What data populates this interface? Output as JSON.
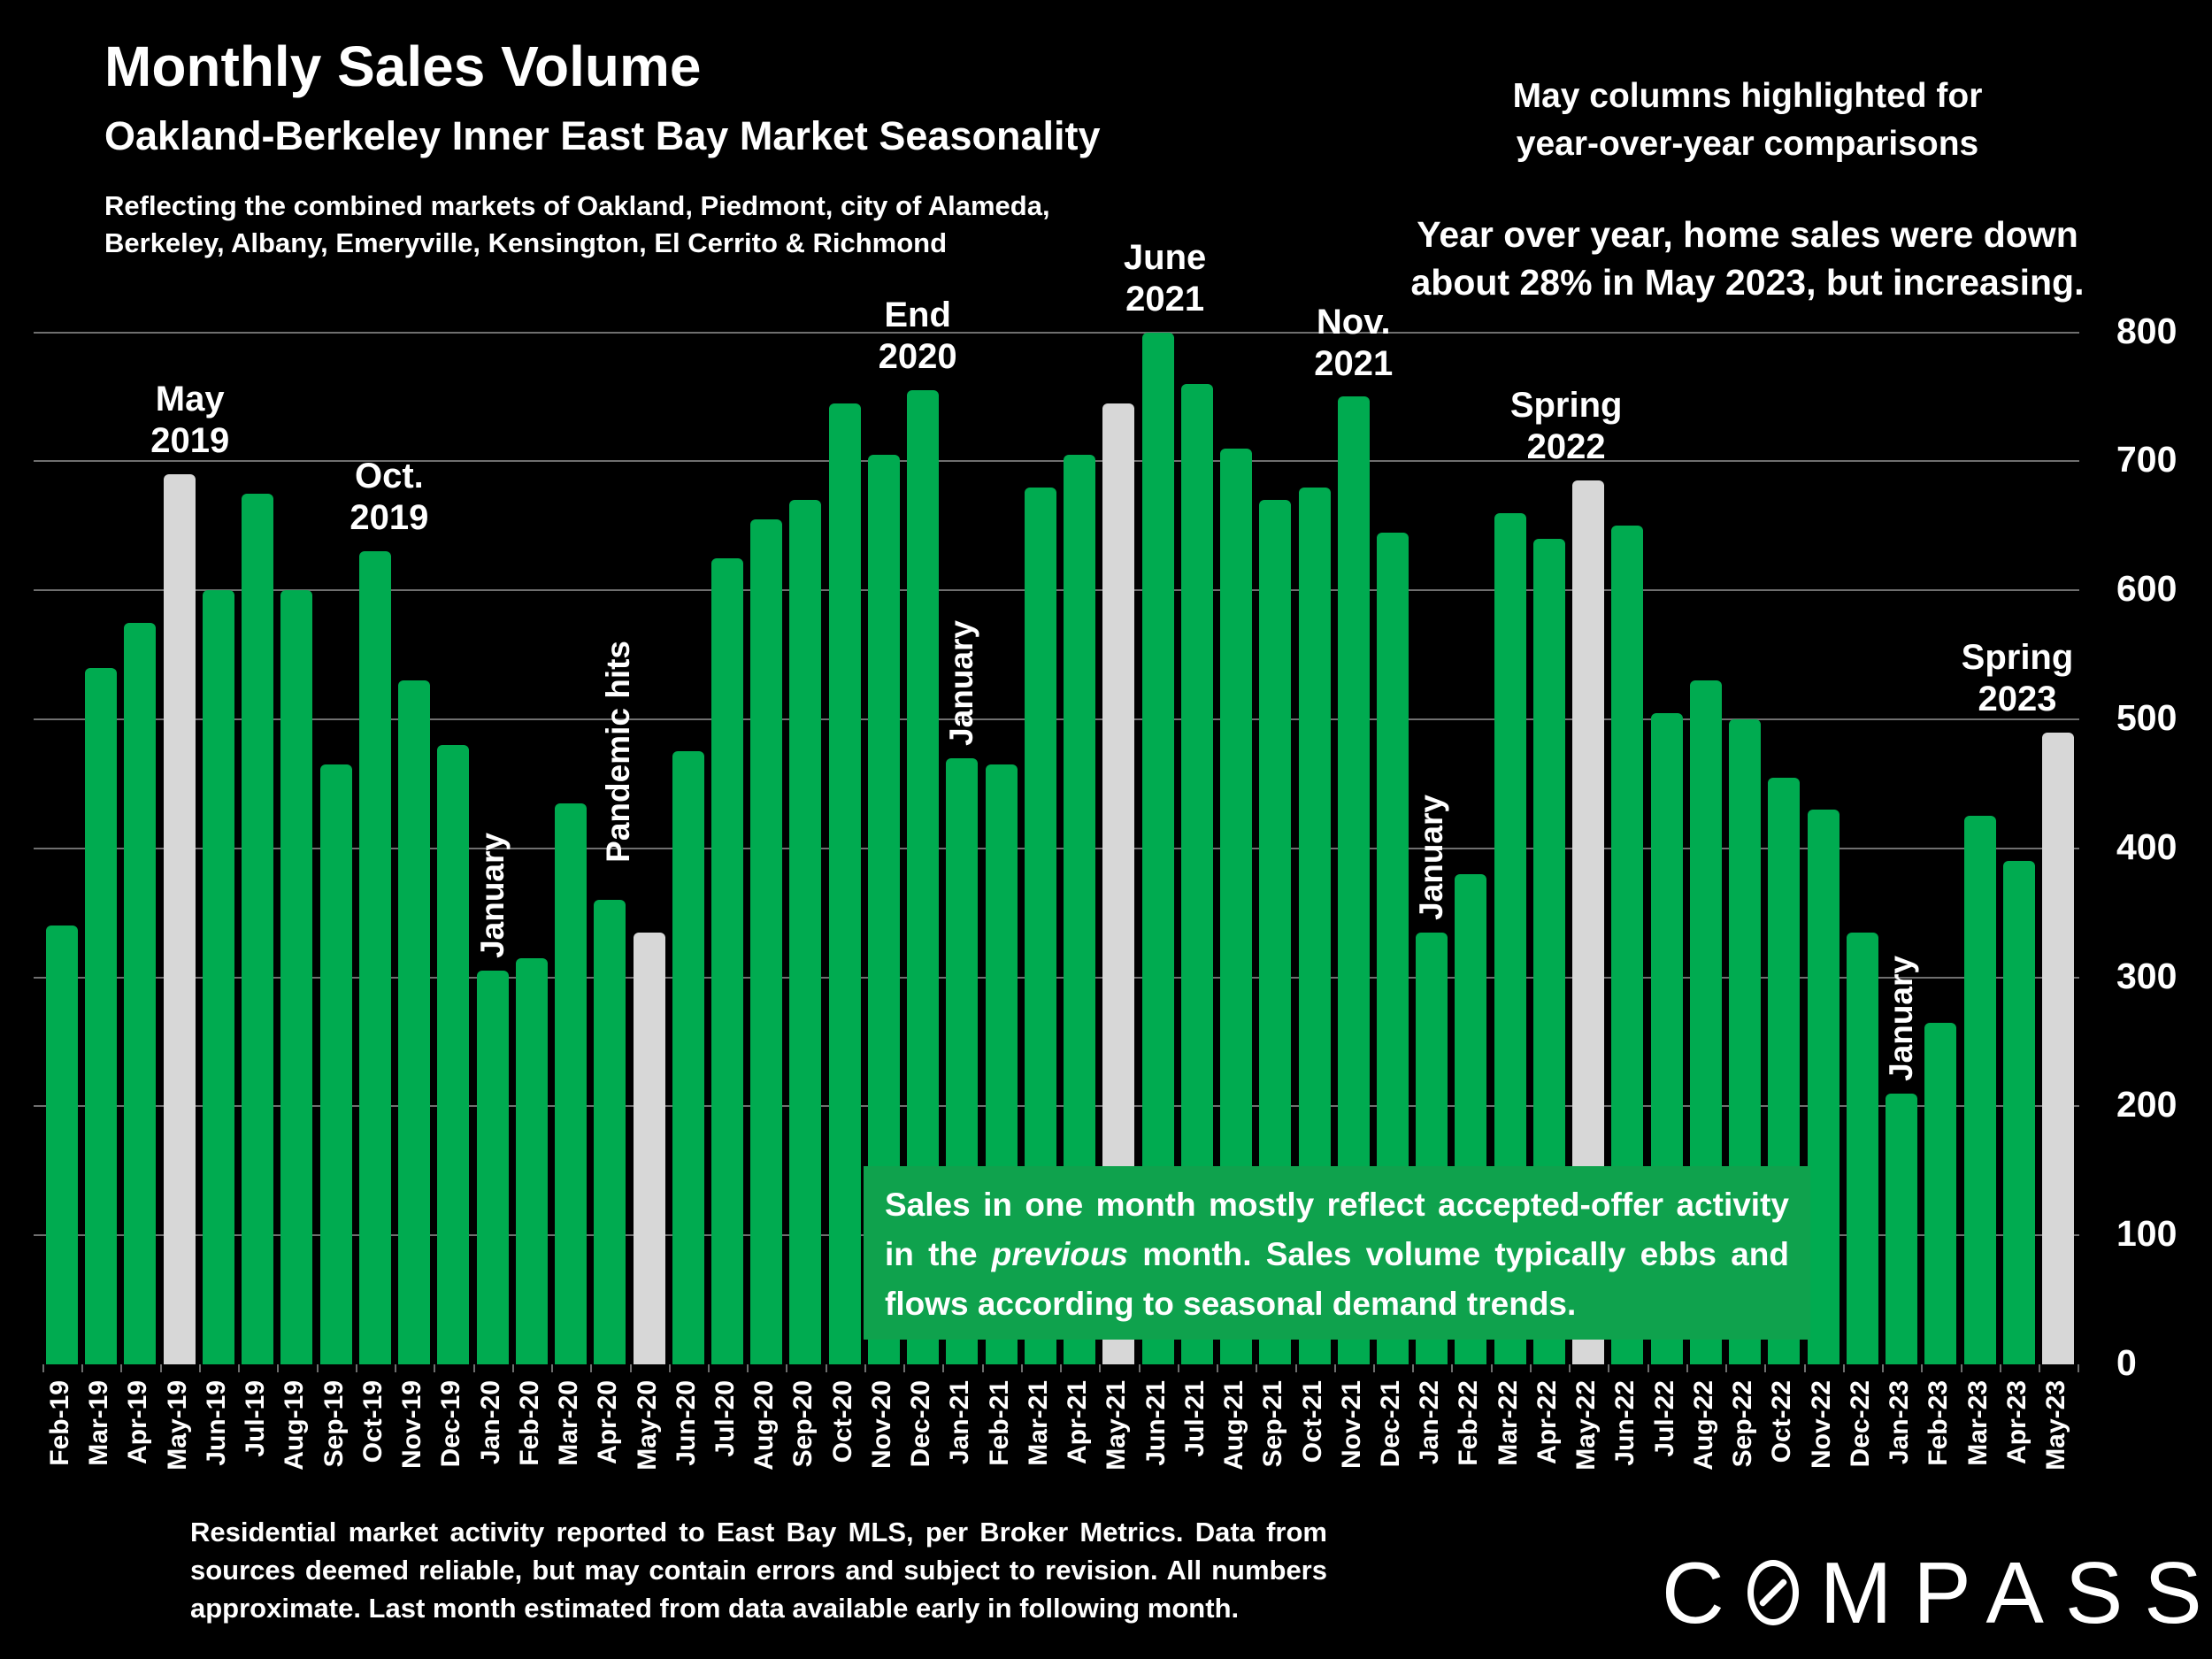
{
  "header": {
    "title": "Monthly Sales Volume",
    "subtitle": "Oakland-Berkeley Inner East Bay Market Seasonality",
    "note_line1": "Reflecting the combined markets of Oakland, Piedmont, city of Alameda,",
    "note_line2": "Berkeley, Albany, Emeryville, Kensington, El Cerrito & Richmond",
    "highlight_note_line1": "May columns highlighted for",
    "highlight_note_line2": "year-over-year comparisons",
    "yoy_line1": "Year over year, home sales were down",
    "yoy_line2": "about 28% in May 2023, but increasing."
  },
  "chart_data": {
    "type": "bar",
    "title": "Monthly Sales Volume",
    "xlabel": "",
    "ylabel": "",
    "ylim": [
      0,
      800
    ],
    "yticks": [
      0,
      100,
      200,
      300,
      400,
      500,
      600,
      700,
      800
    ],
    "grid": true,
    "legend": false,
    "bar_color": "#00AB50",
    "highlight_color": "#D7D7D7",
    "highlight_meaning": "May columns (year-over-year comparison)",
    "highlight_indices": [
      3,
      15,
      27,
      39,
      51
    ],
    "categories": [
      "Feb-19",
      "Mar-19",
      "Apr-19",
      "May-19",
      "Jun-19",
      "Jul-19",
      "Aug-19",
      "Sep-19",
      "Oct-19",
      "Nov-19",
      "Dec-19",
      "Jan-20",
      "Feb-20",
      "Mar-20",
      "Apr-20",
      "May-20",
      "Jun-20",
      "Jul-20",
      "Aug-20",
      "Sep-20",
      "Oct-20",
      "Nov-20",
      "Dec-20",
      "Jan-21",
      "Feb-21",
      "Mar-21",
      "Apr-21",
      "May-21",
      "Jun-21",
      "Jul-21",
      "Aug-21",
      "Sep-21",
      "Oct-21",
      "Nov-21",
      "Dec-21",
      "Jan-22",
      "Feb-22",
      "Mar-22",
      "Apr-22",
      "May-22",
      "Jun-22",
      "Jul-22",
      "Aug-22",
      "Sep-22",
      "Oct-22",
      "Nov-22",
      "Dec-22",
      "Jan-23",
      "Feb-23",
      "Mar-23",
      "Apr-23",
      "May-23"
    ],
    "values": [
      340,
      540,
      575,
      690,
      600,
      675,
      600,
      465,
      630,
      530,
      480,
      305,
      315,
      435,
      360,
      335,
      475,
      625,
      655,
      670,
      745,
      705,
      755,
      470,
      465,
      680,
      705,
      745,
      800,
      760,
      710,
      670,
      680,
      750,
      645,
      335,
      380,
      660,
      640,
      685,
      650,
      505,
      530,
      500,
      455,
      430,
      335,
      210,
      265,
      425,
      390,
      490
    ],
    "annotations": [
      {
        "id": "may-2019",
        "lines": [
          "May",
          "2019"
        ],
        "anchor": 3,
        "rotated": false
      },
      {
        "id": "oct-2019",
        "lines": [
          "Oct.",
          "2019"
        ],
        "anchor": 8,
        "rotated": false
      },
      {
        "id": "jan-2020",
        "lines": [
          "January"
        ],
        "anchor": 11,
        "rotated": true
      },
      {
        "id": "pandemic-hits",
        "lines": [
          "Pandemic hits"
        ],
        "anchor": 15,
        "rotated": true
      },
      {
        "id": "end-2020",
        "lines": [
          "End",
          "2020"
        ],
        "anchor": 22,
        "rotated": false
      },
      {
        "id": "jan-2021",
        "lines": [
          "January"
        ],
        "anchor": 23,
        "rotated": true
      },
      {
        "id": "june-2021",
        "lines": [
          "June",
          "2021"
        ],
        "anchor": 28,
        "rotated": false
      },
      {
        "id": "nov-2021",
        "lines": [
          "Nov.",
          "2021"
        ],
        "anchor": 33,
        "rotated": false
      },
      {
        "id": "jan-2022",
        "lines": [
          "January"
        ],
        "anchor": 35,
        "rotated": true
      },
      {
        "id": "spring-2022",
        "lines": [
          "Spring",
          "2022"
        ],
        "anchor": 39,
        "rotated": false
      },
      {
        "id": "jan-2023",
        "lines": [
          "January"
        ],
        "anchor": 47,
        "rotated": true
      },
      {
        "id": "spring-2023",
        "lines": [
          "Spring",
          "2023"
        ],
        "anchor": 51,
        "rotated": false
      }
    ]
  },
  "info_box": {
    "text_before": "Sales in one month mostly reflect accepted-offer activity in the ",
    "italic_word": "previous",
    "text_after": " month. Sales volume typically ebbs and flows according to seasonal demand trends.",
    "bg_color": "#0FA24D"
  },
  "footer": {
    "disclaimer": "Residential market activity reported to East Bay MLS, per Broker Metrics. Data from sources deemed reliable, but may contain errors and subject to revision. All numbers approximate. Last month estimated from data available early in following month.",
    "logo_text": "COMPASS",
    "logo_before_o": "C",
    "logo_after_o": "MPASS"
  }
}
